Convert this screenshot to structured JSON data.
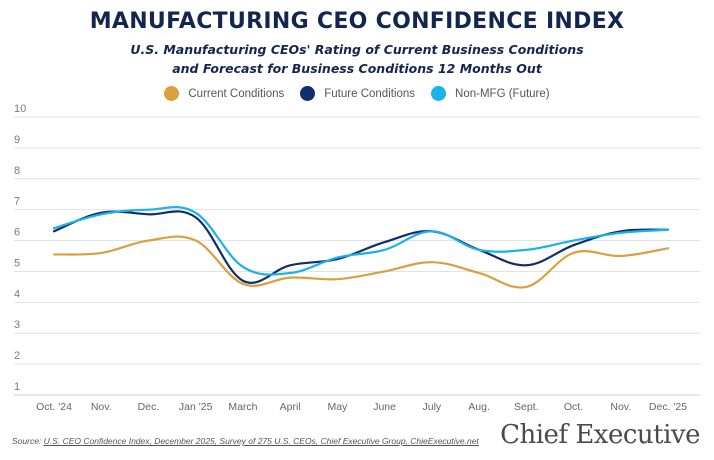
{
  "header": {
    "title": "MANUFACTURING CEO CONFIDENCE INDEX",
    "subtitle_line1": "U.S. Manufacturing CEOs' Rating of Current Business Conditions",
    "subtitle_line2": "and Forecast for Business Conditions 12 Months Out"
  },
  "footer": {
    "source_label": "Source:",
    "source_text": "U.S. CEO Confidence Index, December 2025, Survey of 275 U.S. CEOs, Chief Executive Group, ChieExecutive.net",
    "logo": "Chief Executive"
  },
  "chart_data": {
    "type": "line",
    "title": "MANUFACTURING CEO CONFIDENCE INDEX",
    "subtitle": "U.S. Manufacturing CEOs' Rating of Current Business Conditions and Forecast for Business Conditions 12 Months Out",
    "xlabel": "",
    "ylabel": "",
    "ylim": [
      1,
      10
    ],
    "yticks": [
      1,
      2,
      3,
      4,
      5,
      6,
      7,
      8,
      9,
      10
    ],
    "grid": true,
    "legend_position": "top-center",
    "categories": [
      "Oct. '24",
      "Nov.",
      "Dec.",
      "Jan '25",
      "March",
      "April",
      "May",
      "June",
      "July",
      "Aug.",
      "Sept.",
      "Oct.",
      "Nov.",
      "Dec. '25"
    ],
    "series": [
      {
        "name": "Current Conditions",
        "color": "#d9a040",
        "values": [
          5.55,
          5.6,
          6.0,
          6.0,
          4.6,
          4.8,
          4.75,
          5.0,
          5.3,
          4.95,
          4.5,
          5.6,
          5.5,
          5.75
        ]
      },
      {
        "name": "Future Conditions",
        "color": "#0f2f6b",
        "values": [
          6.3,
          6.9,
          6.85,
          6.75,
          4.7,
          5.2,
          5.4,
          5.95,
          6.3,
          5.7,
          5.2,
          5.85,
          6.3,
          6.35
        ]
      },
      {
        "name": "Non-MFG (Future)",
        "color": "#1ab2e8",
        "values": [
          6.4,
          6.85,
          7.0,
          6.9,
          5.15,
          4.95,
          5.45,
          5.7,
          6.3,
          5.7,
          5.7,
          6.0,
          6.25,
          6.35
        ]
      }
    ]
  }
}
